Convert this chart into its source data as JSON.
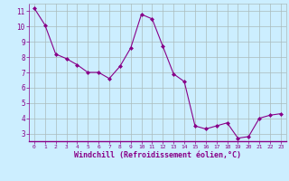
{
  "x": [
    0,
    1,
    2,
    3,
    4,
    5,
    6,
    7,
    8,
    9,
    10,
    11,
    12,
    13,
    14,
    15,
    16,
    17,
    18,
    19,
    20,
    21,
    22,
    23
  ],
  "y": [
    11.2,
    10.1,
    8.2,
    7.9,
    7.5,
    7.0,
    7.0,
    6.6,
    7.4,
    8.6,
    10.8,
    10.5,
    8.7,
    6.9,
    6.4,
    3.5,
    3.3,
    3.5,
    3.7,
    2.7,
    2.8,
    4.0,
    4.2,
    4.3
  ],
  "line_color": "#880088",
  "marker": "D",
  "marker_size": 2.0,
  "bg_color": "#cceeff",
  "grid_color": "#aabbbb",
  "xlabel": "Windchill (Refroidissement éolien,°C)",
  "xlabel_color": "#880088",
  "tick_color": "#880088",
  "ylim": [
    2.5,
    11.5
  ],
  "xlim": [
    -0.5,
    23.5
  ],
  "yticks": [
    3,
    4,
    5,
    6,
    7,
    8,
    9,
    10,
    11
  ],
  "xticks": [
    0,
    1,
    2,
    3,
    4,
    5,
    6,
    7,
    8,
    9,
    10,
    11,
    12,
    13,
    14,
    15,
    16,
    17,
    18,
    19,
    20,
    21,
    22,
    23
  ]
}
